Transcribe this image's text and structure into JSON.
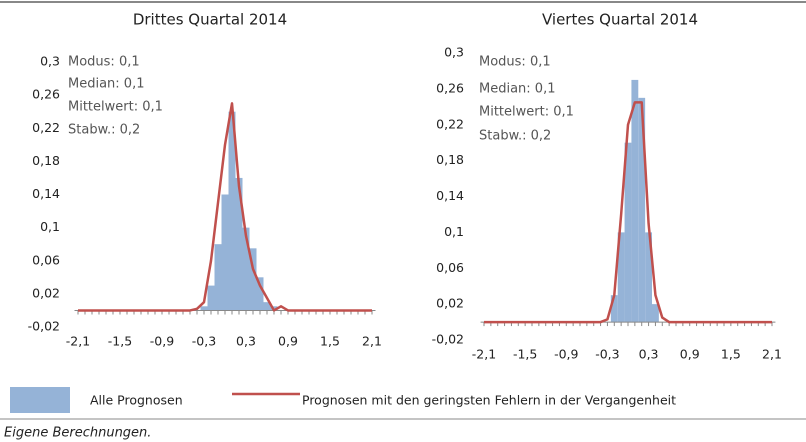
{
  "chart_data": [
    {
      "type": "bar",
      "title": "Drittes Quartal 2014",
      "annotations": [
        "Modus: 0,1",
        "Median: 0,1",
        "Mittelwert: 0,1",
        "Stabw.: 0,2"
      ],
      "categories": [
        "-2,1",
        null,
        null,
        null,
        null,
        null,
        "-1,5",
        null,
        null,
        null,
        null,
        null,
        "-0,9",
        null,
        null,
        null,
        null,
        null,
        "-0,3",
        null,
        null,
        null,
        null,
        null,
        "0,3",
        null,
        null,
        null,
        null,
        null,
        "0,9",
        null,
        null,
        null,
        null,
        null,
        "1,5",
        null,
        null,
        null,
        null,
        null,
        "2,1"
      ],
      "ylim": [
        -0.02,
        0.3
      ],
      "yticks": [
        {
          "value": -0.02,
          "label": "-0,02"
        },
        {
          "value": 0.02,
          "label": "0,02"
        },
        {
          "value": 0.06,
          "label": "0,06"
        },
        {
          "value": 0.1,
          "label": "0,1"
        },
        {
          "value": 0.14,
          "label": "0,14"
        },
        {
          "value": 0.18,
          "label": "0,18"
        },
        {
          "value": 0.22,
          "label": "0,22"
        },
        {
          "value": 0.26,
          "label": "0,26"
        },
        {
          "value": 0.3,
          "label": "0,3"
        }
      ],
      "grid": false,
      "series": [
        {
          "name": "Alle Prognosen",
          "type": "bar",
          "color": "#95b3d7",
          "values": [
            0,
            0,
            0,
            0,
            0,
            0,
            0,
            0,
            0,
            0,
            0,
            0,
            0,
            0,
            0,
            0,
            0,
            0,
            0.005,
            0.03,
            0.08,
            0.14,
            0.24,
            0.16,
            0.1,
            0.075,
            0.04,
            0.01,
            0.005,
            0,
            0,
            0,
            0,
            0,
            0,
            0,
            0,
            0,
            0,
            0,
            0,
            0,
            0
          ]
        },
        {
          "name": "Prognosen mit den geringsten Fehlern in der Vergangenheit",
          "type": "line",
          "color": "#c0504d",
          "values": [
            0,
            0,
            0,
            0,
            0,
            0,
            0,
            0,
            0,
            0,
            0,
            0,
            0,
            0,
            0,
            0,
            0,
            0.002,
            0.01,
            0.06,
            0.13,
            0.2,
            0.25,
            0.15,
            0.09,
            0.05,
            0.03,
            0.015,
            0,
            0.005,
            0,
            0,
            0,
            0,
            0,
            0,
            0,
            0,
            0,
            0,
            0,
            0,
            0
          ]
        }
      ]
    },
    {
      "type": "bar",
      "title": "Viertes Quartal 2014",
      "annotations": [
        "Modus: 0,1",
        "Median: 0,1",
        "Mittelwert: 0,1",
        "Stabw.: 0,2"
      ],
      "categories": [
        "-2,1",
        null,
        null,
        null,
        null,
        null,
        "-1,5",
        null,
        null,
        null,
        null,
        null,
        "-0,9",
        null,
        null,
        null,
        null,
        null,
        "-0,3",
        null,
        null,
        null,
        null,
        null,
        "0,3",
        null,
        null,
        null,
        null,
        null,
        "0,9",
        null,
        null,
        null,
        null,
        null,
        "1,5",
        null,
        null,
        null,
        null,
        null,
        "2,1"
      ],
      "ylim": [
        -0.02,
        0.3
      ],
      "yticks": [
        {
          "value": -0.02,
          "label": "-0,02"
        },
        {
          "value": 0.02,
          "label": "0,02"
        },
        {
          "value": 0.06,
          "label": "0,06"
        },
        {
          "value": 0.1,
          "label": "0,1"
        },
        {
          "value": 0.14,
          "label": "0,14"
        },
        {
          "value": 0.18,
          "label": "0,18"
        },
        {
          "value": 0.22,
          "label": "0,22"
        },
        {
          "value": 0.26,
          "label": "0,26"
        },
        {
          "value": 0.3,
          "label": "0,3"
        }
      ],
      "grid": false,
      "series": [
        {
          "type": "bar",
          "color": "#95b3d7",
          "values": [
            0,
            0,
            0,
            0,
            0,
            0,
            0,
            0,
            0,
            0,
            0,
            0,
            0,
            0,
            0,
            0,
            0,
            0,
            0,
            0.03,
            0.1,
            0.2,
            0.27,
            0.25,
            0.1,
            0.02,
            0,
            0,
            0,
            0,
            0,
            0,
            0,
            0,
            0,
            0,
            0,
            0,
            0,
            0,
            0,
            0,
            0
          ]
        },
        {
          "type": "line",
          "color": "#c0504d",
          "values": [
            0,
            0,
            0,
            0,
            0,
            0,
            0,
            0,
            0,
            0,
            0,
            0,
            0,
            0,
            0,
            0,
            0,
            0,
            0.003,
            0.03,
            0.12,
            0.22,
            0.245,
            0.245,
            0.11,
            0.03,
            0.005,
            0,
            0,
            0,
            0,
            0,
            0,
            0,
            0,
            0,
            0,
            0,
            0,
            0,
            0,
            0,
            0
          ]
        }
      ]
    }
  ],
  "note": "Eigene Berechnungen."
}
